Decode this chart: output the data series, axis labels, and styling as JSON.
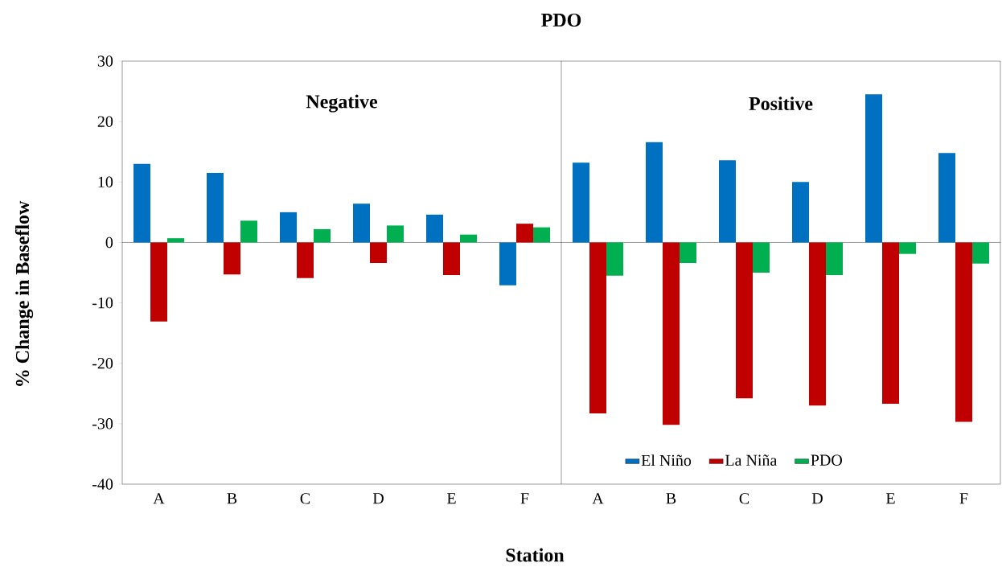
{
  "chart_data": {
    "type": "bar",
    "title": "PDO",
    "xlabel": "Station",
    "ylabel": "% Change in Baseflow",
    "categories": [
      "A",
      "B",
      "C",
      "D",
      "E",
      "F",
      "A",
      "B",
      "C",
      "D",
      "E",
      "F"
    ],
    "series": [
      {
        "name": "El Niño",
        "color": "#0070c0",
        "values": [
          13.0,
          11.5,
          5.0,
          6.4,
          4.6,
          -7.1,
          13.2,
          16.6,
          13.6,
          10.0,
          24.5,
          14.8
        ]
      },
      {
        "name": "La Niña",
        "color": "#c00000",
        "values": [
          -13.1,
          -5.3,
          -5.9,
          -3.4,
          -5.4,
          3.1,
          -28.3,
          -30.2,
          -25.8,
          -27.0,
          -26.7,
          -29.7
        ]
      },
      {
        "name": "PDO",
        "color": "#00b050",
        "values": [
          0.7,
          3.6,
          2.2,
          2.8,
          1.3,
          2.5,
          -5.5,
          -3.4,
          -5.0,
          -5.4,
          -1.9,
          -3.5
        ]
      }
    ],
    "ylim": [
      -40,
      30
    ],
    "yticks": [
      -40,
      -30,
      -20,
      -10,
      0,
      10,
      20,
      30
    ],
    "annotations": [
      "Negative",
      "Positive"
    ],
    "legend": "bottom right"
  }
}
